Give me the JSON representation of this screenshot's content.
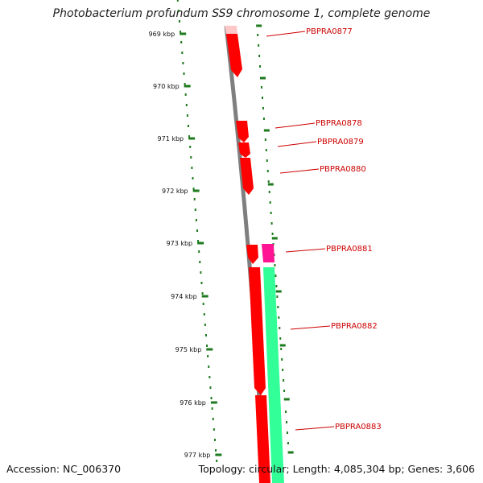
{
  "title": "Photobacterium profundum SS9 chromosome 1, complete genome",
  "accession": "Accession: NC_006370",
  "summary": "Topology: circular; Length: 4,085,304 bp; Genes: 3,606",
  "colors": {
    "backbone": "#7f7f7f",
    "tick": "#1e7a1e",
    "forward_gene": "#ff0000",
    "reverse_gene": "#33ff99",
    "rna_gene": "#ff1493",
    "label": "#cc0000"
  },
  "kbp_ticks": [
    "969 kbp",
    "970 kbp",
    "971 kbp",
    "972 kbp",
    "973 kbp",
    "974 kbp",
    "975 kbp",
    "976 kbp",
    "977 kbp"
  ],
  "genes": [
    {
      "label": "PBPRA0877"
    },
    {
      "label": "PBPRA0878"
    },
    {
      "label": "PBPRA0879"
    },
    {
      "label": "PBPRA0880"
    },
    {
      "label": "PBPRA0881"
    },
    {
      "label": "PBPRA0882"
    },
    {
      "label": "PBPRA0883"
    }
  ]
}
